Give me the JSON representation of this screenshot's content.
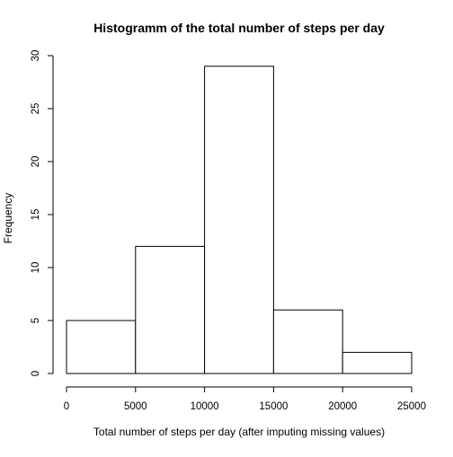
{
  "chart_data": {
    "type": "histogram",
    "title": "Histogramm of the total number of steps per day",
    "xlabel": "Total number of steps per day (after imputing missing values)",
    "ylabel": "Frequency",
    "bins": [
      {
        "start": 0,
        "end": 5000,
        "count": 5
      },
      {
        "start": 5000,
        "end": 10000,
        "count": 12
      },
      {
        "start": 10000,
        "end": 15000,
        "count": 29
      },
      {
        "start": 15000,
        "end": 20000,
        "count": 6
      },
      {
        "start": 20000,
        "end": 25000,
        "count": 2
      }
    ],
    "xlim": [
      0,
      25000
    ],
    "ylim": [
      0,
      30
    ],
    "x_ticks": [
      0,
      5000,
      10000,
      15000,
      20000,
      25000
    ],
    "y_ticks": [
      0,
      5,
      10,
      15,
      20,
      25,
      30
    ],
    "grid": false,
    "legend": "none",
    "bar_fill": "#ffffff",
    "bar_stroke": "#000000"
  }
}
